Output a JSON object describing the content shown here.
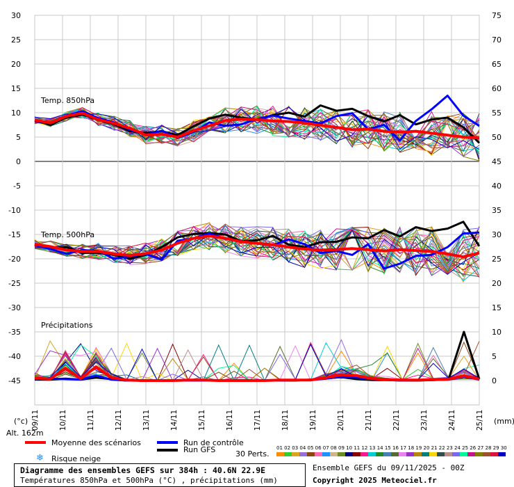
{
  "chart_data": {
    "type": "line",
    "left_axis": {
      "label": "(°c)",
      "ticks": [
        30,
        25,
        20,
        15,
        10,
        5,
        0,
        -5,
        -10,
        -15,
        -20,
        -25,
        -30,
        -35,
        -40,
        -45
      ],
      "ylim": [
        -50,
        30
      ]
    },
    "right_axis": {
      "label": "(mm)",
      "ticks": [
        75,
        70,
        65,
        60,
        55,
        50,
        45,
        40,
        35,
        30,
        25,
        20,
        15,
        10,
        5,
        0
      ]
    },
    "dates": [
      "09/11",
      "10/11",
      "11/11",
      "12/11",
      "13/11",
      "14/11",
      "15/11",
      "16/11",
      "17/11",
      "18/11",
      "19/11",
      "20/11",
      "21/11",
      "22/11",
      "23/11",
      "24/11",
      "25/11"
    ],
    "panel_labels": {
      "t850": "Temp. 850hPa",
      "t500": "Temp. 500hPa",
      "precip": "Précipitations"
    },
    "alt_label": "Alt. 162m",
    "series": [
      {
        "name": "Moyenne des scénarios",
        "color": "#ff0000",
        "t850": [
          8.5,
          7.9,
          9.3,
          9.9,
          8.6,
          7.8,
          6.8,
          5.4,
          5.6,
          5.0,
          6.3,
          7.3,
          8.4,
          8.7,
          8.6,
          8.3,
          8.2,
          7.9,
          7.4,
          7.0,
          6.5,
          6.6,
          6.2,
          6.0,
          6.2,
          5.8,
          5.4,
          5.0,
          4.8
        ],
        "t500": [
          -17.0,
          -17.5,
          -18.2,
          -18.5,
          -18.5,
          -19.0,
          -19.3,
          -18.9,
          -18.2,
          -16.8,
          -15.8,
          -15.3,
          -15.8,
          -16.5,
          -16.8,
          -17.1,
          -17.6,
          -18.0,
          -18.2,
          -18.1,
          -17.9,
          -18.1,
          -18.4,
          -18.1,
          -18.3,
          -18.5,
          -19.0,
          -19.6,
          -18.8
        ],
        "precip": [
          0.5,
          0.3,
          2.5,
          0.4,
          2.8,
          0.6,
          0.1,
          0.0,
          0.0,
          0.0,
          0.1,
          0.1,
          0.0,
          0.0,
          0.0,
          0.0,
          0.1,
          0.1,
          0.1,
          0.6,
          1.2,
          1.0,
          0.4,
          0.2,
          0.1,
          0.1,
          0.2,
          0.3,
          1.0,
          0.3
        ]
      },
      {
        "name": "Run de contrôle",
        "color": "#0000ff",
        "t850": [
          8.2,
          8.0,
          9.4,
          10.3,
          8.9,
          8.0,
          6.5,
          5.5,
          6.3,
          4.8,
          6.0,
          8.0,
          7.3,
          7.6,
          8.7,
          9.4,
          8.8,
          8.3,
          7.8,
          9.3,
          9.9,
          6.6,
          7.5,
          4.3,
          8.3,
          10.7,
          13.5,
          9.4,
          7.3
        ],
        "t500": [
          -17.2,
          -18.0,
          -19.0,
          -18.2,
          -18.4,
          -20.0,
          -19.5,
          -19.0,
          -20.2,
          -16.3,
          -15.8,
          -14.8,
          -15.9,
          -16.4,
          -16.9,
          -17.2,
          -16.0,
          -17.0,
          -18.8,
          -18.4,
          -19.2,
          -17.0,
          -22.0,
          -21.0,
          -19.4,
          -19.2,
          -17.6,
          -14.8,
          -14.6
        ],
        "precip": [
          0.3,
          0.4,
          0.3,
          0.2,
          1.0,
          0.2,
          0.0,
          0.0,
          0.0,
          0.0,
          0.0,
          0.0,
          0.0,
          0.0,
          0.0,
          0.0,
          0.0,
          0.1,
          0.1,
          0.4,
          0.8,
          0.6,
          0.3,
          0.1,
          0.0,
          0.1,
          0.1,
          0.2,
          0.8,
          0.2
        ]
      },
      {
        "name": "Run GFS",
        "color": "#000000",
        "t850": [
          8.4,
          7.5,
          9.0,
          9.6,
          8.5,
          7.6,
          6.2,
          5.8,
          6.2,
          5.4,
          7.2,
          8.8,
          9.6,
          9.0,
          8.6,
          9.5,
          10.0,
          9.2,
          11.5,
          10.4,
          10.8,
          9.3,
          8.2,
          9.5,
          7.6,
          8.6,
          9.0,
          7.0,
          3.8
        ],
        "t500": [
          -17.0,
          -17.8,
          -17.6,
          -18.8,
          -18.8,
          -19.2,
          -20.0,
          -19.2,
          -17.6,
          -15.6,
          -14.9,
          -14.7,
          -15.0,
          -16.4,
          -16.2,
          -15.3,
          -17.1,
          -17.6,
          -16.6,
          -16.5,
          -15.6,
          -15.8,
          -14.1,
          -15.4,
          -13.5,
          -14.3,
          -13.8,
          -12.4,
          -17.4
        ],
        "precip": [
          0.2,
          0.2,
          0.4,
          0.2,
          0.6,
          0.3,
          0.0,
          0.0,
          0.0,
          0.0,
          0.0,
          0.0,
          0.0,
          0.1,
          0.1,
          0.0,
          0.0,
          0.0,
          0.2,
          0.5,
          0.7,
          0.3,
          0.1,
          0.1,
          0.0,
          0.0,
          0.1,
          0.3,
          10.0,
          0.3
        ]
      }
    ],
    "grid": true
  },
  "legend": {
    "mean": {
      "label": "Moyenne des scénarios",
      "color": "#ff0000"
    },
    "control": {
      "label": "Run de contrôle",
      "color": "#0000ff"
    },
    "gfs": {
      "label": "Run GFS",
      "color": "#000000"
    },
    "snow": {
      "label": "Risque neige"
    },
    "perts": {
      "label": "30 Perts.",
      "numbers": "01 02 03 04 05 06 07 08 09 10 11 12 13 14 15 16 17 18 19 20 21 22 23 24 25 26 27 28 29 30",
      "colors": [
        "#ff8c00",
        "#32cd32",
        "#daa520",
        "#9370db",
        "#8b4513",
        "#ff69b4",
        "#1e90ff",
        "#d2b48c",
        "#6b8e23",
        "#000080",
        "#8b0000",
        "#ff1493",
        "#00ced1",
        "#228b22",
        "#4682b4",
        "#556b2f",
        "#ee82ee",
        "#9932cc",
        "#b8860b",
        "#008080",
        "#ffd700",
        "#2f4f4f",
        "#bc8f8f",
        "#7b68ee",
        "#00fa9a",
        "#c71585",
        "#808000",
        "#a0522d",
        "#dc143c",
        "#0000cd"
      ]
    }
  },
  "title": {
    "line1": "Diagramme des ensembles GEFS sur 384h : 40.6N 22.9E",
    "line2": "Températures 850hPa et 500hPa (°C) , précipitations (mm)"
  },
  "info": {
    "run": "Ensemble GEFS du 09/11/2025 - 00Z",
    "copyright": "Copyright 2025 Meteociel.fr"
  }
}
